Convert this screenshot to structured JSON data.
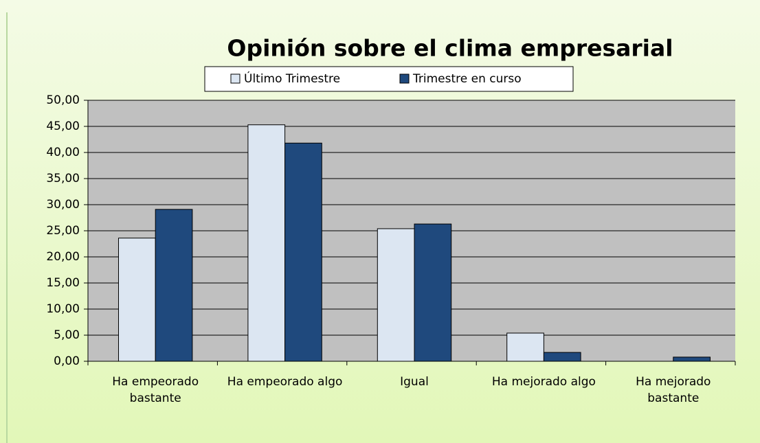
{
  "chart_data": {
    "type": "bar",
    "title": "Opinión sobre el clima empresarial",
    "categories": [
      "Ha empeorado bastante",
      "Ha empeorado algo",
      "Igual",
      "Ha mejorado algo",
      "Ha mejorado bastante"
    ],
    "series": [
      {
        "name": "Último Trimestre",
        "color": "#dce6f2",
        "values": [
          23.6,
          45.3,
          25.4,
          5.4,
          0
        ]
      },
      {
        "name": "Trimestre en curso",
        "color": "#1f497d",
        "values": [
          29.1,
          41.8,
          26.3,
          1.7,
          0.8
        ]
      }
    ],
    "ylim": [
      0,
      50
    ],
    "yticks": [
      {
        "value": 0,
        "label": "0,00"
      },
      {
        "value": 5,
        "label": "5,00"
      },
      {
        "value": 10,
        "label": "10,00"
      },
      {
        "value": 15,
        "label": "15,00"
      },
      {
        "value": 20,
        "label": "20,00"
      },
      {
        "value": 25,
        "label": "25,00"
      },
      {
        "value": 30,
        "label": "30,00"
      },
      {
        "value": 35,
        "label": "35,00"
      },
      {
        "value": 40,
        "label": "40,00"
      },
      {
        "value": 45,
        "label": "45,00"
      },
      {
        "value": 50,
        "label": "50,00"
      }
    ],
    "grid": true,
    "legend": "top"
  }
}
